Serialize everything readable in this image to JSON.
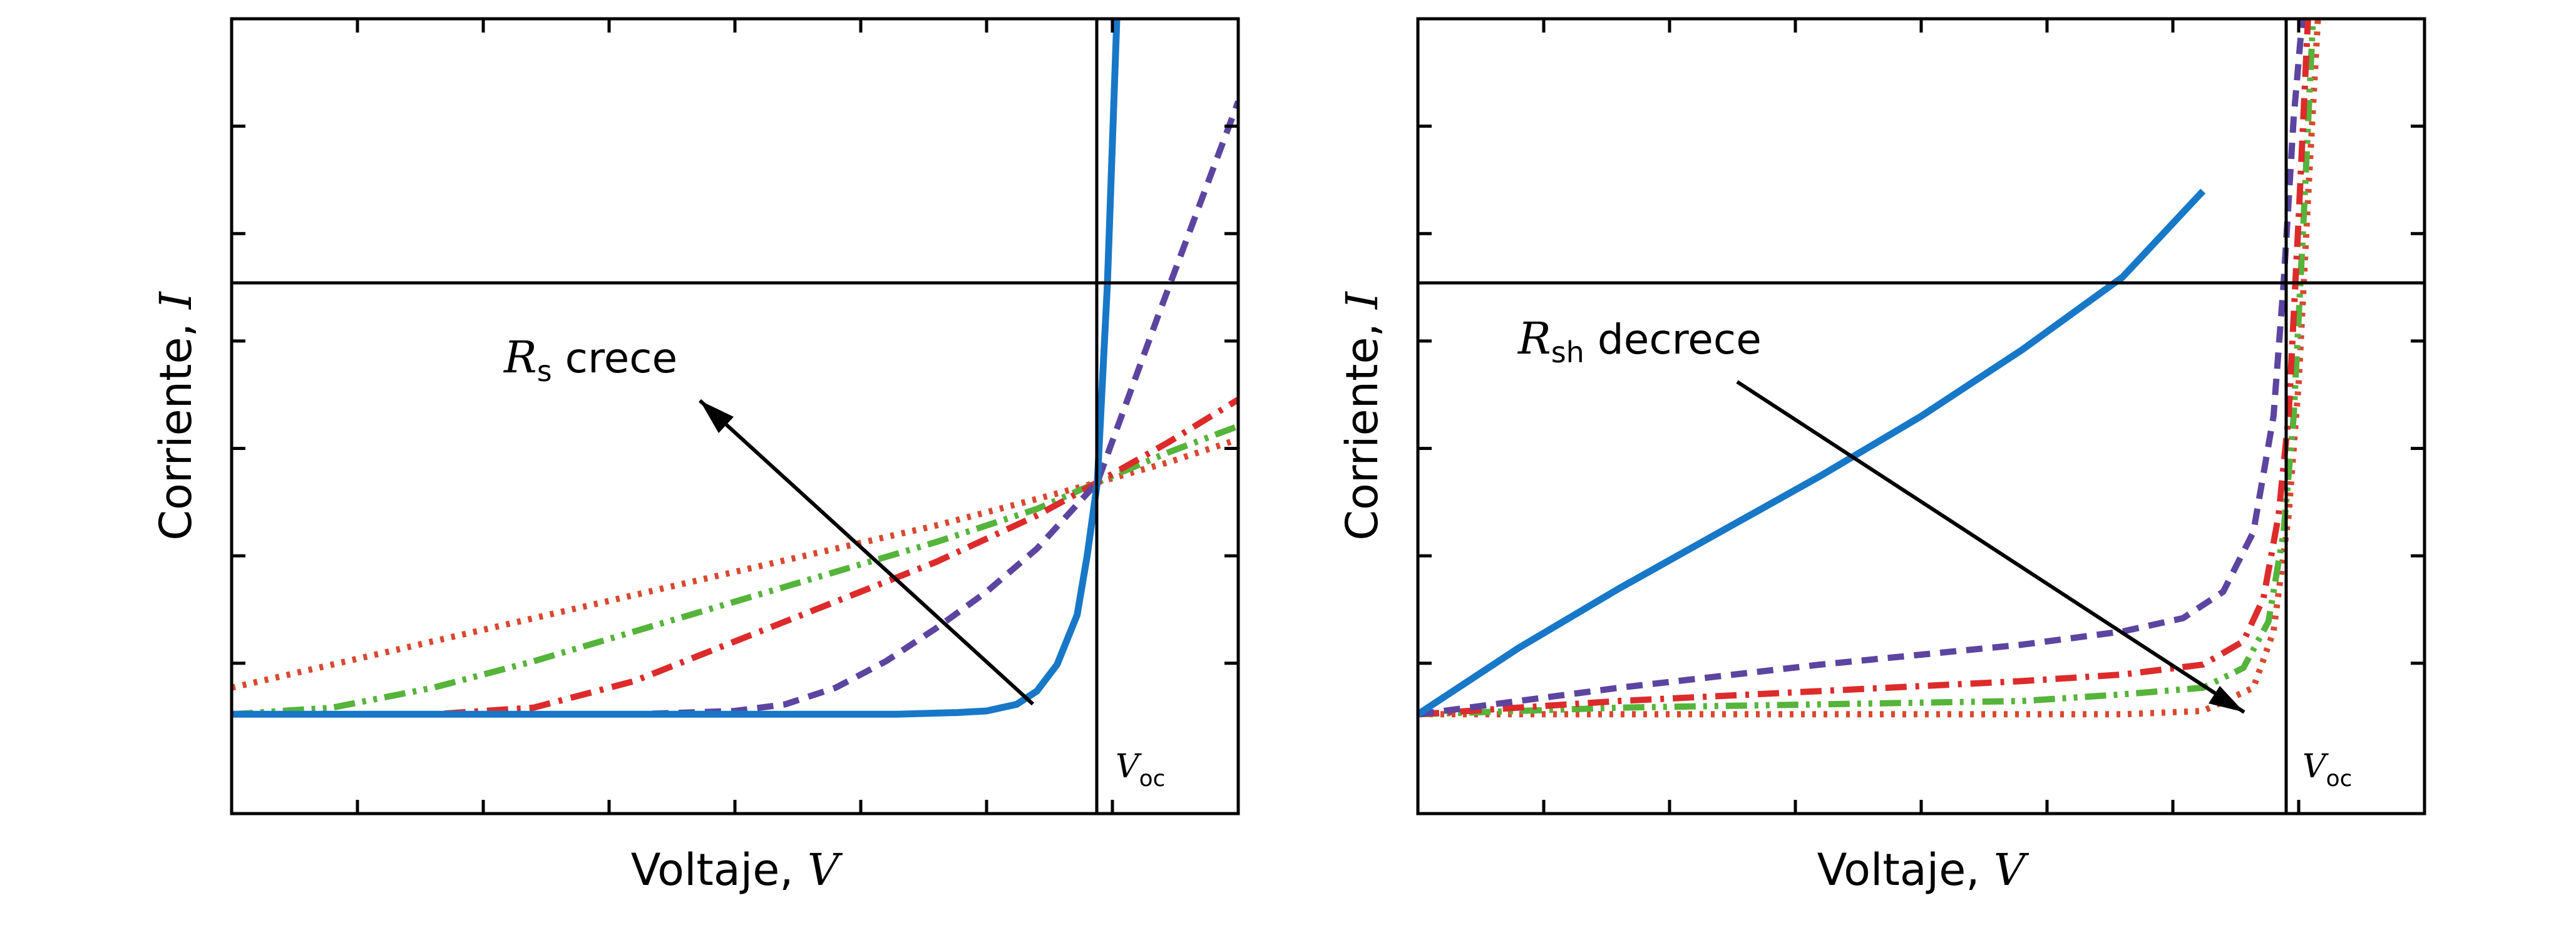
{
  "colors": {
    "blue": "#1878c8",
    "purple": "#5b45a0",
    "red": "#dd2b2b",
    "green": "#55b43a",
    "orange_red": "#d9482f",
    "axes": "#000000"
  },
  "chart_data": [
    {
      "type": "line",
      "xlabel_text": "Voltaje, ",
      "xlabel_var": "V",
      "ylabel_text": "Corriente, ",
      "ylabel_var": "I",
      "xlim": [
        0,
        1
      ],
      "ylim": [
        -1,
        1.4
      ],
      "voc_label": "V",
      "voc_sub": "oc",
      "voc_x": 0.86,
      "annotation": {
        "var": "R",
        "sub": "s",
        "text": " crece"
      },
      "series": [
        {
          "style": "solid",
          "color": "#1878c8",
          "x": [
            0,
            0.1,
            0.2,
            0.3,
            0.4,
            0.5,
            0.6,
            0.66,
            0.72,
            0.75,
            0.78,
            0.8,
            0.82,
            0.84,
            0.85,
            0.86,
            0.87,
            0.88
          ],
          "y": [
            -0.7,
            -0.7,
            -0.7,
            -0.7,
            -0.7,
            -0.7,
            -0.7,
            -0.7,
            -0.695,
            -0.69,
            -0.67,
            -0.63,
            -0.55,
            -0.4,
            -0.22,
            0,
            0.6,
            1.45
          ]
        },
        {
          "style": "dashed",
          "color": "#5b45a0",
          "x": [
            0,
            0.2,
            0.4,
            0.5,
            0.55,
            0.6,
            0.65,
            0.7,
            0.75,
            0.8,
            0.86,
            0.92,
            1.0
          ],
          "y": [
            -0.7,
            -0.7,
            -0.7,
            -0.69,
            -0.67,
            -0.62,
            -0.54,
            -0.44,
            -0.33,
            -0.2,
            0,
            0.5,
            1.15
          ]
        },
        {
          "style": "dashdot",
          "color": "#dd2b2b",
          "x": [
            0,
            0.1,
            0.2,
            0.3,
            0.4,
            0.5,
            0.6,
            0.7,
            0.8,
            0.86,
            0.93,
            1.0
          ],
          "y": [
            -0.7,
            -0.7,
            -0.7,
            -0.68,
            -0.6,
            -0.48,
            -0.36,
            -0.24,
            -0.1,
            0,
            0.12,
            0.25
          ]
        },
        {
          "style": "dashdotdot",
          "color": "#55b43a",
          "x": [
            0,
            0.1,
            0.2,
            0.3,
            0.4,
            0.5,
            0.6,
            0.7,
            0.8,
            0.86,
            0.93,
            1.0
          ],
          "y": [
            -0.7,
            -0.68,
            -0.62,
            -0.54,
            -0.45,
            -0.36,
            -0.27,
            -0.18,
            -0.08,
            0,
            0.09,
            0.17
          ]
        },
        {
          "style": "dotted",
          "color": "#d9482f",
          "x": [
            0,
            0.1,
            0.2,
            0.3,
            0.4,
            0.5,
            0.6,
            0.7,
            0.8,
            0.86,
            0.93,
            1.0
          ],
          "y": [
            -0.62,
            -0.55,
            -0.48,
            -0.41,
            -0.34,
            -0.27,
            -0.2,
            -0.13,
            -0.05,
            0,
            0.06,
            0.13
          ]
        }
      ]
    },
    {
      "type": "line",
      "xlabel_text": "Voltaje, ",
      "xlabel_var": "V",
      "ylabel_text": "Corriente, ",
      "ylabel_var": "I",
      "xlim": [
        0,
        1
      ],
      "ylim": [
        -1,
        1.4
      ],
      "voc_label": "V",
      "voc_sub": "oc",
      "voc_x": 0.865,
      "annotation": {
        "var": "R",
        "sub": "sh",
        "text": " decrece"
      },
      "series": [
        {
          "style": "solid",
          "color": "#1878c8",
          "x": [
            0,
            0.1,
            0.2,
            0.3,
            0.4,
            0.5,
            0.6,
            0.7,
            0.78
          ],
          "y": [
            -0.7,
            -0.5,
            -0.32,
            -0.15,
            0.02,
            0.2,
            0.4,
            0.62,
            0.88
          ]
        },
        {
          "style": "dashed",
          "color": "#5b45a0",
          "x": [
            0,
            0.2,
            0.4,
            0.6,
            0.7,
            0.76,
            0.8,
            0.83,
            0.85,
            0.86,
            0.87,
            0.88
          ],
          "y": [
            -0.7,
            -0.62,
            -0.55,
            -0.49,
            -0.45,
            -0.41,
            -0.33,
            -0.15,
            0.2,
            0.6,
            1.1,
            1.45
          ]
        },
        {
          "style": "dashdot",
          "color": "#dd2b2b",
          "x": [
            0,
            0.2,
            0.4,
            0.6,
            0.7,
            0.78,
            0.82,
            0.84,
            0.855,
            0.865,
            0.875,
            0.885
          ],
          "y": [
            -0.7,
            -0.66,
            -0.63,
            -0.6,
            -0.58,
            -0.55,
            -0.48,
            -0.35,
            -0.1,
            0.2,
            0.8,
            1.45
          ]
        },
        {
          "style": "dashdotdot",
          "color": "#55b43a",
          "x": [
            0,
            0.2,
            0.4,
            0.6,
            0.7,
            0.78,
            0.82,
            0.845,
            0.86,
            0.87,
            0.88,
            0.89
          ],
          "y": [
            -0.7,
            -0.68,
            -0.67,
            -0.66,
            -0.64,
            -0.62,
            -0.56,
            -0.42,
            -0.15,
            0.2,
            0.8,
            1.45
          ]
        },
        {
          "style": "dotted",
          "color": "#d9482f",
          "x": [
            0,
            0.2,
            0.4,
            0.6,
            0.7,
            0.78,
            0.83,
            0.85,
            0.865,
            0.875,
            0.885,
            0.895
          ],
          "y": [
            -0.7,
            -0.7,
            -0.7,
            -0.7,
            -0.7,
            -0.69,
            -0.62,
            -0.45,
            -0.1,
            0.3,
            0.9,
            1.45
          ]
        }
      ]
    }
  ]
}
